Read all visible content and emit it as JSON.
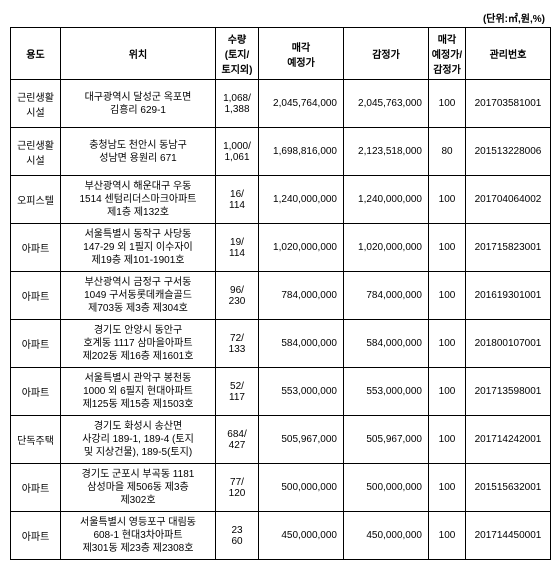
{
  "unit_label": "(단위:㎡,원,%)",
  "headers": {
    "use": "용도",
    "location": "위치",
    "quantity": "수량<br>(토지/<br>토지외)",
    "sale_price": "매각<br>예정가",
    "appraisal": "감정가",
    "ratio": "매각<br>예정가/<br>감정가",
    "mgmt_no": "관리번호"
  },
  "rows": [
    {
      "use": "근린생활<br>시설",
      "location": "대구광역시 달성군 옥포면<br>김흥리 629-1",
      "quantity": "1,068/<br>1,388",
      "sale_price": "2,045,764,000",
      "appraisal": "2,045,763,000",
      "ratio": "100",
      "mgmt_no": "201703581001"
    },
    {
      "use": "근린생활<br>시설",
      "location": "충청남도 천안시 동남구<br>성남면 용원리 671",
      "quantity": "1,000/<br>1,061",
      "sale_price": "1,698,816,000",
      "appraisal": "2,123,518,000",
      "ratio": "80",
      "mgmt_no": "201513228006"
    },
    {
      "use": "오피스텔",
      "location": "부산광역시 해운대구 우동<br>1514 센텀리더스마크아파트<br>제1층 제132호",
      "quantity": "16/<br>114",
      "sale_price": "1,240,000,000",
      "appraisal": "1,240,000,000",
      "ratio": "100",
      "mgmt_no": "201704064002"
    },
    {
      "use": "아파트",
      "location": "서울특별시 동작구 사당동<br>147-29 외 1필지 이수자이<br>제19층 제101-1901호",
      "quantity": "19/<br>114",
      "sale_price": "1,020,000,000",
      "appraisal": "1,020,000,000",
      "ratio": "100",
      "mgmt_no": "201715823001"
    },
    {
      "use": "아파트",
      "location": "부산광역시 금정구 구서동<br>1049 구서동롯데캐슬골드<br>제703동 제3층 제304호",
      "quantity": "96/<br>230",
      "sale_price": "784,000,000",
      "appraisal": "784,000,000",
      "ratio": "100",
      "mgmt_no": "201619301001"
    },
    {
      "use": "아파트",
      "location": "경기도 안양시 동안구<br>호계동 1117 삼마을아파트<br>제202동 제16층 제1601호",
      "quantity": "72/<br>133",
      "sale_price": "584,000,000",
      "appraisal": "584,000,000",
      "ratio": "100",
      "mgmt_no": "201800107001"
    },
    {
      "use": "아파트",
      "location": "서울특별시 관악구 봉천동<br>1000 외 6필지 현대아파트<br>제125동 제15층 제1503호",
      "quantity": "52/<br>117",
      "sale_price": "553,000,000",
      "appraisal": "553,000,000",
      "ratio": "100",
      "mgmt_no": "201713598001"
    },
    {
      "use": "단독주택",
      "location": "경기도 화성시 송산면<br>사강리 189-1, 189-4 (토지<br>및 지상건물), 189-5(토지)",
      "quantity": "684/<br>427",
      "sale_price": "505,967,000",
      "appraisal": "505,967,000",
      "ratio": "100",
      "mgmt_no": "201714242001"
    },
    {
      "use": "아파트",
      "location": "경기도 군포시 부곡동 1181<br>삼성마을 제506동 제3층<br>제302호",
      "quantity": "77/<br>120",
      "sale_price": "500,000,000",
      "appraisal": "500,000,000",
      "ratio": "100",
      "mgmt_no": "201515632001"
    },
    {
      "use": "아파트",
      "location": "서울특별시 영등포구 대림동<br>608-1 현대3차아파트<br>제301동 제23층 제2308호",
      "quantity": "23<br>60",
      "sale_price": "450,000,000",
      "appraisal": "450,000,000",
      "ratio": "100",
      "mgmt_no": "201714450001"
    }
  ]
}
